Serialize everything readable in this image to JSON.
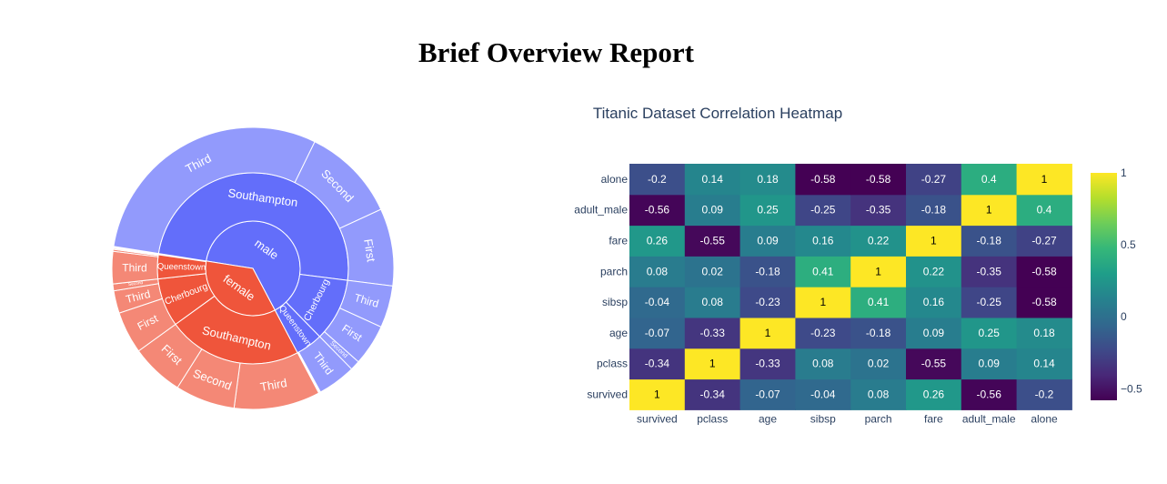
{
  "page": {
    "title": "Brief Overview Report"
  },
  "chart_data": [
    {
      "type": "sunburst",
      "title": "",
      "levels": [
        "sex",
        "embark_town",
        "class"
      ],
      "colors": {
        "male": "#636efa",
        "female": "#ef553b"
      },
      "nodes": [
        {
          "id": "male",
          "label": "male",
          "parent": "",
          "value": 577
        },
        {
          "id": "female",
          "label": "female",
          "parent": "",
          "value": 314
        },
        {
          "id": "male/Southampton",
          "label": "Southampton",
          "parent": "male",
          "value": 441
        },
        {
          "id": "male/Cherbourg",
          "label": "Cherbourg",
          "parent": "male",
          "value": 95
        },
        {
          "id": "male/Queenstown",
          "label": "Queenstown",
          "parent": "male",
          "value": 41
        },
        {
          "id": "female/Southampton",
          "label": "Southampton",
          "parent": "female",
          "value": 203
        },
        {
          "id": "female/Cherbourg",
          "label": "Cherbourg",
          "parent": "female",
          "value": 73
        },
        {
          "id": "female/Queenstown",
          "label": "Queenstown",
          "parent": "female",
          "value": 36
        },
        {
          "id": "male/Southampton/Third",
          "label": "Third",
          "parent": "male/Southampton",
          "value": 265
        },
        {
          "id": "male/Southampton/Second",
          "label": "Second",
          "parent": "male/Southampton",
          "value": 97
        },
        {
          "id": "male/Southampton/First",
          "label": "First",
          "parent": "male/Southampton",
          "value": 79
        },
        {
          "id": "male/Cherbourg/Third",
          "label": "Third",
          "parent": "male/Cherbourg",
          "value": 43
        },
        {
          "id": "male/Cherbourg/First",
          "label": "First",
          "parent": "male/Cherbourg",
          "value": 42
        },
        {
          "id": "male/Cherbourg/Second",
          "label": "Second",
          "parent": "male/Cherbourg",
          "value": 10
        },
        {
          "id": "male/Queenstown/Third",
          "label": "Third",
          "parent": "male/Queenstown",
          "value": 39
        },
        {
          "id": "male/Queenstown/Second",
          "label": "Second",
          "parent": "male/Queenstown",
          "value": 1
        },
        {
          "id": "male/Queenstown/First",
          "label": "First",
          "parent": "male/Queenstown",
          "value": 1
        },
        {
          "id": "female/Southampton/Third",
          "label": "Third",
          "parent": "female/Southampton",
          "value": 88
        },
        {
          "id": "female/Southampton/Second",
          "label": "Second",
          "parent": "female/Southampton",
          "value": 61
        },
        {
          "id": "female/Southampton/First",
          "label": "First",
          "parent": "female/Southampton",
          "value": 54
        },
        {
          "id": "female/Cherbourg/First",
          "label": "First",
          "parent": "female/Cherbourg",
          "value": 43
        },
        {
          "id": "female/Cherbourg/Third",
          "label": "Third",
          "parent": "female/Cherbourg",
          "value": 23
        },
        {
          "id": "female/Cherbourg/Second",
          "label": "Second",
          "parent": "female/Cherbourg",
          "value": 7
        },
        {
          "id": "female/Queenstown/Third",
          "label": "Third",
          "parent": "female/Queenstown",
          "value": 33
        },
        {
          "id": "female/Queenstown/Second",
          "label": "Second",
          "parent": "female/Queenstown",
          "value": 2
        },
        {
          "id": "female/Queenstown/First",
          "label": "First",
          "parent": "female/Queenstown",
          "value": 1
        }
      ]
    },
    {
      "type": "heatmap",
      "title": "Titanic Dataset Correlation Heatmap",
      "x": [
        "survived",
        "pclass",
        "age",
        "sibsp",
        "parch",
        "fare",
        "adult_male",
        "alone"
      ],
      "y": [
        "survived",
        "pclass",
        "age",
        "sibsp",
        "parch",
        "fare",
        "adult_male",
        "alone"
      ],
      "z": [
        [
          1,
          -0.34,
          -0.07,
          -0.04,
          0.08,
          0.26,
          -0.56,
          -0.2
        ],
        [
          -0.34,
          1,
          -0.33,
          0.08,
          0.02,
          -0.55,
          0.09,
          0.14
        ],
        [
          -0.07,
          -0.33,
          1,
          -0.23,
          -0.18,
          0.09,
          0.25,
          0.18
        ],
        [
          -0.04,
          0.08,
          -0.23,
          1,
          0.41,
          0.16,
          -0.25,
          -0.58
        ],
        [
          0.08,
          0.02,
          -0.18,
          0.41,
          1,
          0.22,
          -0.35,
          -0.58
        ],
        [
          0.26,
          -0.55,
          0.09,
          0.16,
          0.22,
          1,
          -0.18,
          -0.27
        ],
        [
          -0.56,
          0.09,
          0.25,
          -0.25,
          -0.35,
          -0.18,
          1,
          0.4
        ],
        [
          -0.2,
          0.14,
          0.18,
          -0.58,
          -0.58,
          -0.27,
          0.4,
          1
        ]
      ],
      "colorscale": "Viridis",
      "zrange": [
        -0.58,
        1
      ],
      "colorbar": {
        "tickvals": [
          1,
          0.5,
          0,
          -0.5
        ],
        "ticktext": [
          "1",
          "0.5",
          "0",
          "−0.5"
        ]
      }
    }
  ]
}
